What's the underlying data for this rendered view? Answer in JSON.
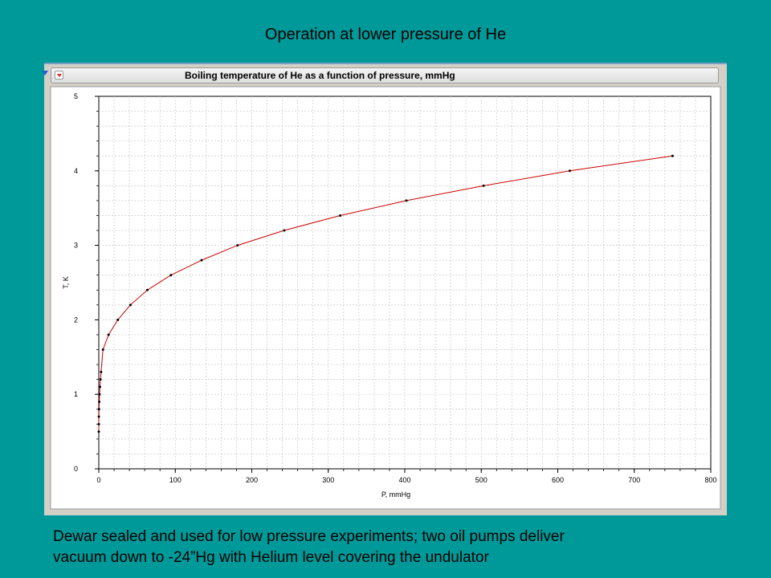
{
  "slide": {
    "title": "Operation at lower pressure of He",
    "caption_line1": "Dewar sealed and used for low pressure experiments; two oil pumps deliver",
    "caption_line2": "vacuum down to -24”Hg with Helium level covering the undulator"
  },
  "colors": {
    "background": "#009999",
    "curve": "#cc0000",
    "points": "#000000",
    "grid": "#c8c8c8"
  },
  "chart_data": {
    "type": "line",
    "title": "Boiling temperature of He as a function of pressure, mmHg",
    "xlabel": "P, mmHg",
    "ylabel": "T, K",
    "xlim": [
      0,
      800
    ],
    "ylim": [
      0,
      5
    ],
    "xticks": [
      0,
      100,
      200,
      300,
      400,
      500,
      600,
      700,
      800
    ],
    "yticks": [
      0,
      1,
      2,
      3,
      4,
      5
    ],
    "grid": true,
    "series": [
      {
        "x": [
          0.0,
          0.05,
          0.1,
          0.3,
          0.6,
          1.0,
          1.5,
          2.2,
          3.0,
          5.5,
          12.8,
          24.9,
          41.4,
          63.5,
          94.3,
          134.4,
          181.4,
          242.5,
          315.6,
          402.2,
          503.0,
          615.7,
          750.0
        ],
        "y": [
          0.5,
          0.6,
          0.7,
          0.8,
          0.9,
          1.0,
          1.1,
          1.2,
          1.3,
          1.6,
          1.8,
          2.0,
          2.2,
          2.4,
          2.6,
          2.8,
          3.0,
          3.2,
          3.4,
          3.6,
          3.8,
          4.0,
          4.2
        ]
      }
    ]
  }
}
